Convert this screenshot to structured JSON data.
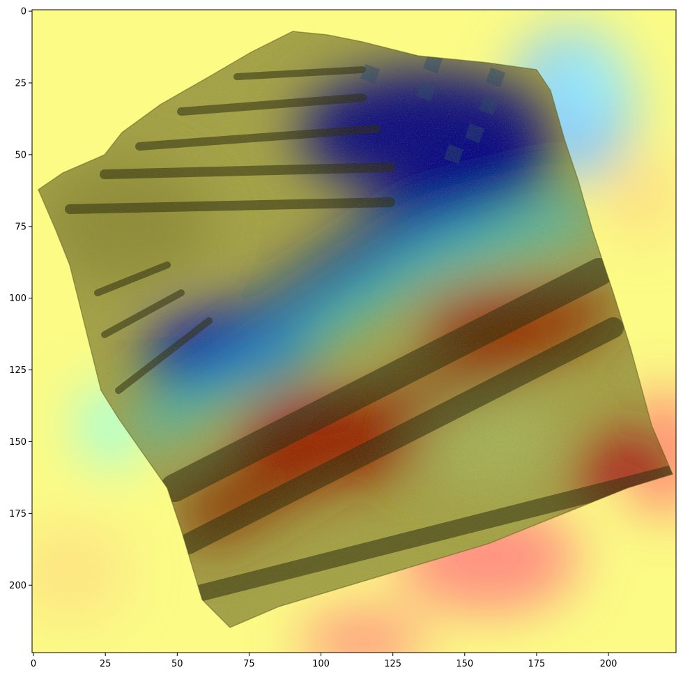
{
  "figure": {
    "description_type": "image with heatmap overlay displayed in matplotlib axes"
  },
  "chart_data": {
    "type": "heatmap",
    "title": "",
    "xlabel": "",
    "ylabel": "",
    "xlim": [
      -0.5,
      223.5
    ],
    "ylim": [
      223.5,
      -0.5
    ],
    "x_ticks": [
      0,
      25,
      50,
      75,
      100,
      125,
      150,
      175,
      200
    ],
    "y_ticks": [
      0,
      25,
      50,
      75,
      100,
      125,
      150,
      175,
      200
    ],
    "x_tick_labels": [
      "0",
      "25",
      "50",
      "75",
      "100",
      "125",
      "150",
      "175",
      "200"
    ],
    "y_tick_labels": [
      "0",
      "25",
      "50",
      "75",
      "100",
      "125",
      "150",
      "175",
      "200"
    ],
    "grid": false,
    "colormap": "jet",
    "overlay_alpha": 0.5,
    "subject": "ceramic-sherd",
    "colors": {
      "background_low": "#ffff80",
      "sherd_base": "#7f8040",
      "hot": "#d00000",
      "cold": "#00008f",
      "cyan": "#40ffff"
    }
  }
}
